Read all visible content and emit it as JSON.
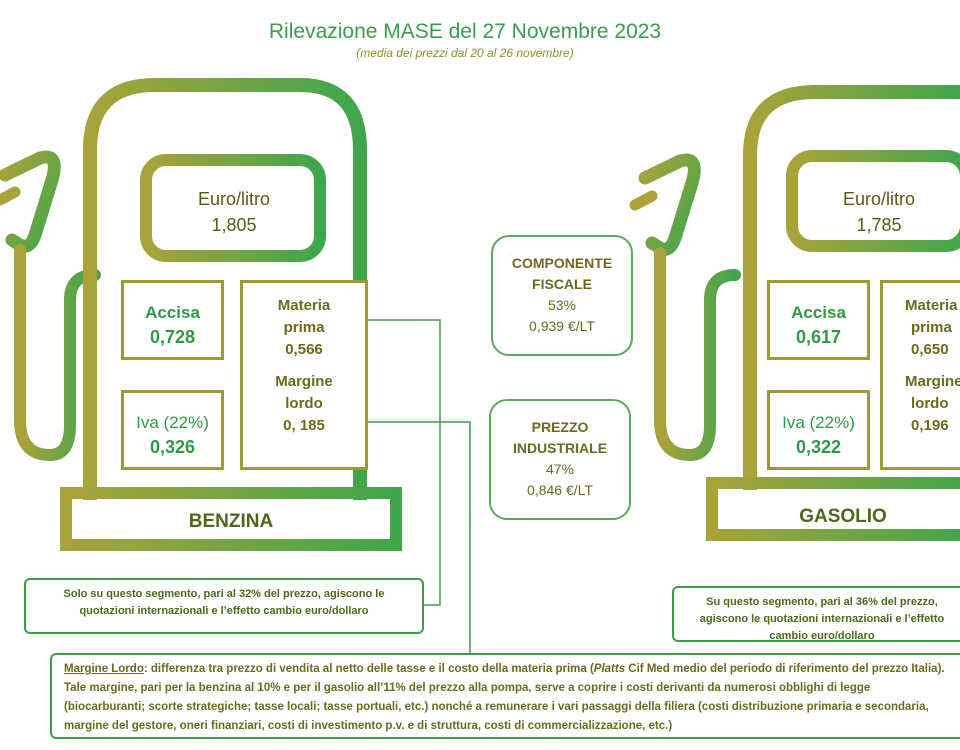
{
  "header": {
    "title": "Rilevazione MASE del 27 Novembre 2023",
    "subtitle": "(media dei prezzi dal 20 al 26 novembre)"
  },
  "benzina": {
    "price_label": "Euro/litro",
    "price_value": "1,805",
    "accisa_label": "Accisa",
    "accisa_value": "0,728",
    "iva_label": "Iva (22%)",
    "iva_value": "0,326",
    "materia_label_1": "Materia",
    "materia_label_2": "prima",
    "materia_value": "0,566",
    "margine_label_1": "Margine",
    "margine_label_2": "lordo",
    "margine_value": "0, 185",
    "name": "BENZINA",
    "note": "Solo su questo segmento, pari al 32% del prezzo, agiscono le quotazioni internazionali e l’effetto cambio euro/dollaro"
  },
  "gasolio": {
    "price_label": "Euro/litro",
    "price_value": "1,785",
    "accisa_label": "Accisa",
    "accisa_value": "0,617",
    "iva_label": "Iva (22%)",
    "iva_value": "0,322",
    "materia_label_1": "Materia",
    "materia_label_2": "prima",
    "materia_value": "0,650",
    "margine_label_1": "Margine",
    "margine_label_2": "lordo",
    "margine_value": "0,196",
    "name": "GASOLIO",
    "note": "Su questo segmento, pari al 36% del prezzo, agiscono le quotazioni internazionali e l’effetto cambio euro/dollaro"
  },
  "fiscale": {
    "label_1": "COMPONENTE",
    "label_2": "FISCALE",
    "pct": "53%",
    "value": "0,939 €/LT"
  },
  "industriale": {
    "label_1": "PREZZO",
    "label_2": "INDUSTRIALE",
    "pct": "47%",
    "value": "0,846 €/LT"
  },
  "footnote": {
    "term": "Margine Lordo",
    "text_1": ": differenza tra prezzo di vendita al netto delle tasse e il costo della materia prima (",
    "platts": "Platts",
    "text_2": " Cif Med medio del periodo di riferimento del prezzo Italia).",
    "line_2": "Tale margine, pari per la benzina al 10% e per il gasolio all’11% del prezzo alla pompa, serve a coprire i costi derivanti da numerosi obblighi di legge",
    "line_3": "(biocarburanti; scorte strategiche; tasse locali; tasse portuali, etc.) nonché a remunerare i vari passaggi della filiera (costi distribuzione primaria e secondaria,",
    "line_4": "margine del gestore, oneri finanziari, costi di investimento p.v. e di struttura, costi di commercializzazione, etc.)"
  },
  "colors": {
    "green": "#3fa64c",
    "olive": "#9c9a35"
  }
}
